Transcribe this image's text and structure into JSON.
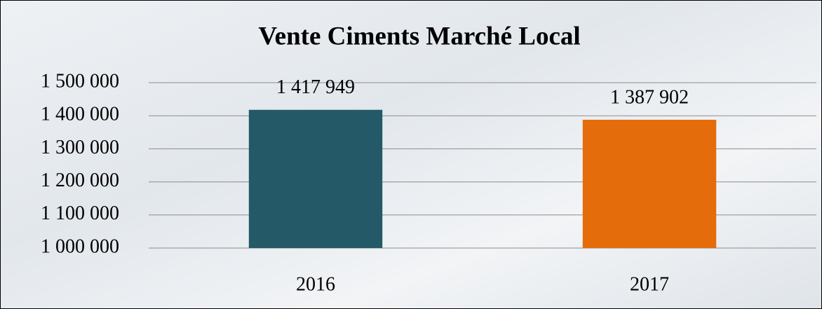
{
  "chart_data": {
    "type": "bar",
    "title": "Vente Ciments Marché Local",
    "categories": [
      "2016",
      "2017"
    ],
    "values": [
      1417949,
      1387902
    ],
    "value_labels": [
      "1 417 949",
      "1 387 902"
    ],
    "colors": [
      "#245a67",
      "#e46c0a"
    ],
    "ylim": [
      1000000,
      1500000
    ],
    "yticks": [
      {
        "value": 1000000,
        "label": "1 000 000"
      },
      {
        "value": 1100000,
        "label": "1 100 000"
      },
      {
        "value": 1200000,
        "label": "1 200 000"
      },
      {
        "value": 1300000,
        "label": "1 300 000"
      },
      {
        "value": 1400000,
        "label": "1 400 000"
      },
      {
        "value": 1500000,
        "label": "1 500 000"
      }
    ],
    "grid": true
  }
}
